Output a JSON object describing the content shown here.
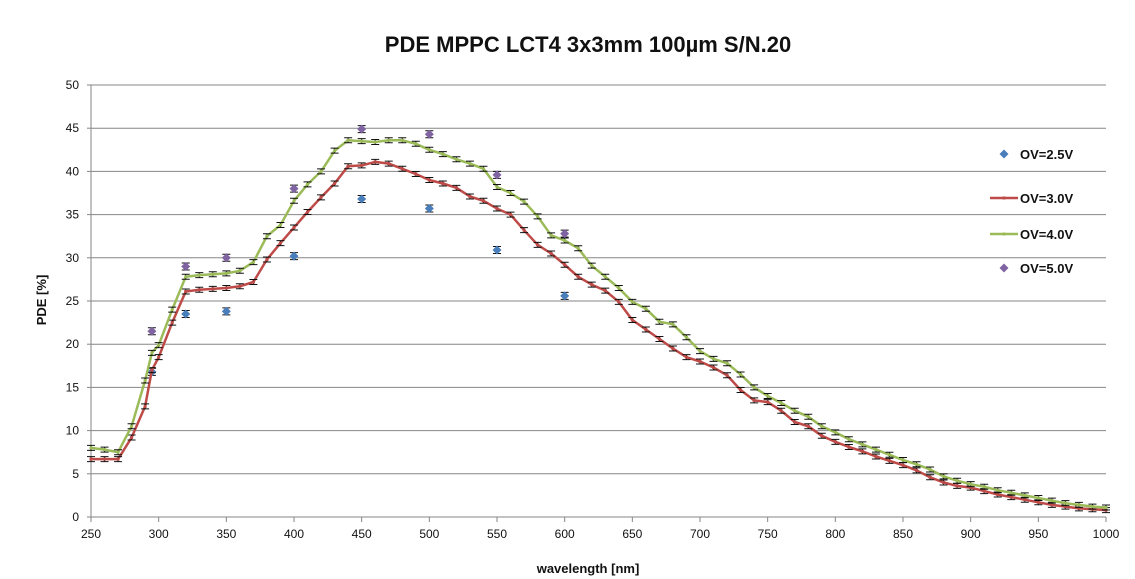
{
  "chart_data": {
    "type": "line",
    "title": "PDE MPPC LCT4 3x3mm 100µm S/N.20",
    "xlabel": "wavelength [nm]",
    "ylabel": "PDE [%]",
    "xlim": [
      250,
      1000
    ],
    "ylim": [
      0,
      50
    ],
    "xticks": [
      "250",
      "300",
      "350",
      "400",
      "450",
      "500",
      "550",
      "600",
      "650",
      "700",
      "750",
      "800",
      "850",
      "900",
      "950",
      "1000"
    ],
    "yticks": [
      "0",
      "5",
      "10",
      "15",
      "20",
      "25",
      "30",
      "35",
      "40",
      "45",
      "50"
    ],
    "grid": "horizontal",
    "legend_position": "right",
    "error_bars": true,
    "series": [
      {
        "name": "OV=2.5V",
        "kind": "scatter",
        "marker": "diamond",
        "color": "#4a7ebb",
        "x": [
          295,
          320,
          350,
          400,
          450,
          500,
          550,
          600
        ],
        "y": [
          16.8,
          23.5,
          23.8,
          30.2,
          36.8,
          35.7,
          30.9,
          25.6
        ]
      },
      {
        "name": "OV=3.0V",
        "kind": "line",
        "color": "#be4b48",
        "x": [
          250,
          260,
          270,
          280,
          290,
          295,
          300,
          310,
          320,
          330,
          340,
          350,
          360,
          370,
          380,
          390,
          400,
          410,
          420,
          430,
          440,
          450,
          460,
          470,
          480,
          490,
          500,
          510,
          520,
          530,
          540,
          550,
          560,
          570,
          580,
          590,
          600,
          610,
          620,
          630,
          640,
          650,
          660,
          670,
          680,
          690,
          700,
          710,
          720,
          730,
          740,
          750,
          760,
          770,
          780,
          790,
          800,
          810,
          820,
          830,
          840,
          850,
          860,
          870,
          880,
          890,
          900,
          910,
          920,
          930,
          940,
          950,
          960,
          970,
          980,
          990,
          1000
        ],
        "y": [
          6.7,
          6.7,
          6.7,
          9.2,
          12.8,
          17.0,
          18.5,
          22.5,
          26.1,
          26.3,
          26.4,
          26.5,
          26.7,
          27.2,
          29.8,
          31.7,
          33.5,
          35.3,
          37.0,
          38.6,
          40.6,
          40.7,
          41.1,
          40.9,
          40.3,
          39.7,
          39.0,
          38.6,
          38.1,
          37.1,
          36.6,
          35.7,
          35.0,
          33.2,
          31.5,
          30.5,
          29.2,
          27.8,
          26.9,
          26.2,
          24.9,
          22.8,
          21.7,
          20.6,
          19.5,
          18.5,
          18.0,
          17.3,
          16.4,
          14.7,
          13.5,
          13.3,
          12.3,
          11.0,
          10.5,
          9.4,
          8.7,
          8.1,
          7.6,
          7.0,
          6.5,
          6.0,
          5.4,
          4.6,
          4.0,
          3.6,
          3.4,
          3.0,
          2.6,
          2.3,
          2.0,
          1.7,
          1.4,
          1.2,
          1.0,
          0.9,
          0.8
        ]
      },
      {
        "name": "OV=4.0V",
        "kind": "line",
        "color": "#9bbb59",
        "x": [
          250,
          260,
          270,
          280,
          290,
          295,
          300,
          310,
          320,
          330,
          340,
          350,
          360,
          370,
          380,
          390,
          400,
          410,
          420,
          430,
          440,
          450,
          460,
          470,
          480,
          490,
          500,
          510,
          520,
          530,
          540,
          550,
          560,
          570,
          580,
          590,
          600,
          610,
          620,
          630,
          640,
          650,
          660,
          670,
          680,
          690,
          700,
          710,
          720,
          730,
          740,
          750,
          760,
          770,
          780,
          790,
          800,
          810,
          820,
          830,
          840,
          850,
          860,
          870,
          880,
          890,
          900,
          910,
          920,
          930,
          940,
          950,
          960,
          970,
          980,
          990,
          1000
        ],
        "y": [
          8.0,
          7.8,
          7.5,
          10.5,
          15.8,
          19.0,
          19.9,
          24.0,
          27.8,
          28.0,
          28.1,
          28.2,
          28.5,
          29.5,
          32.5,
          33.8,
          36.6,
          38.5,
          40.0,
          42.4,
          43.6,
          43.5,
          43.4,
          43.6,
          43.6,
          43.2,
          42.5,
          42.0,
          41.4,
          40.9,
          40.3,
          38.2,
          37.5,
          36.5,
          34.8,
          32.6,
          32.0,
          31.1,
          29.1,
          27.8,
          26.5,
          24.9,
          24.1,
          22.6,
          22.3,
          20.8,
          19.2,
          18.3,
          17.8,
          16.5,
          15.0,
          14.0,
          13.2,
          12.3,
          11.6,
          10.5,
          9.8,
          9.0,
          8.4,
          7.8,
          7.2,
          6.6,
          6.1,
          5.5,
          4.7,
          4.2,
          3.8,
          3.5,
          3.1,
          2.8,
          2.5,
          2.2,
          1.9,
          1.6,
          1.4,
          1.2,
          1.1
        ]
      },
      {
        "name": "OV=5.0V",
        "kind": "scatter",
        "marker": "diamond",
        "color": "#8064a2",
        "x": [
          295,
          320,
          350,
          400,
          450,
          500,
          550,
          600
        ],
        "y": [
          21.5,
          29.0,
          30.0,
          38.0,
          44.9,
          44.3,
          39.6,
          32.8
        ]
      }
    ]
  }
}
